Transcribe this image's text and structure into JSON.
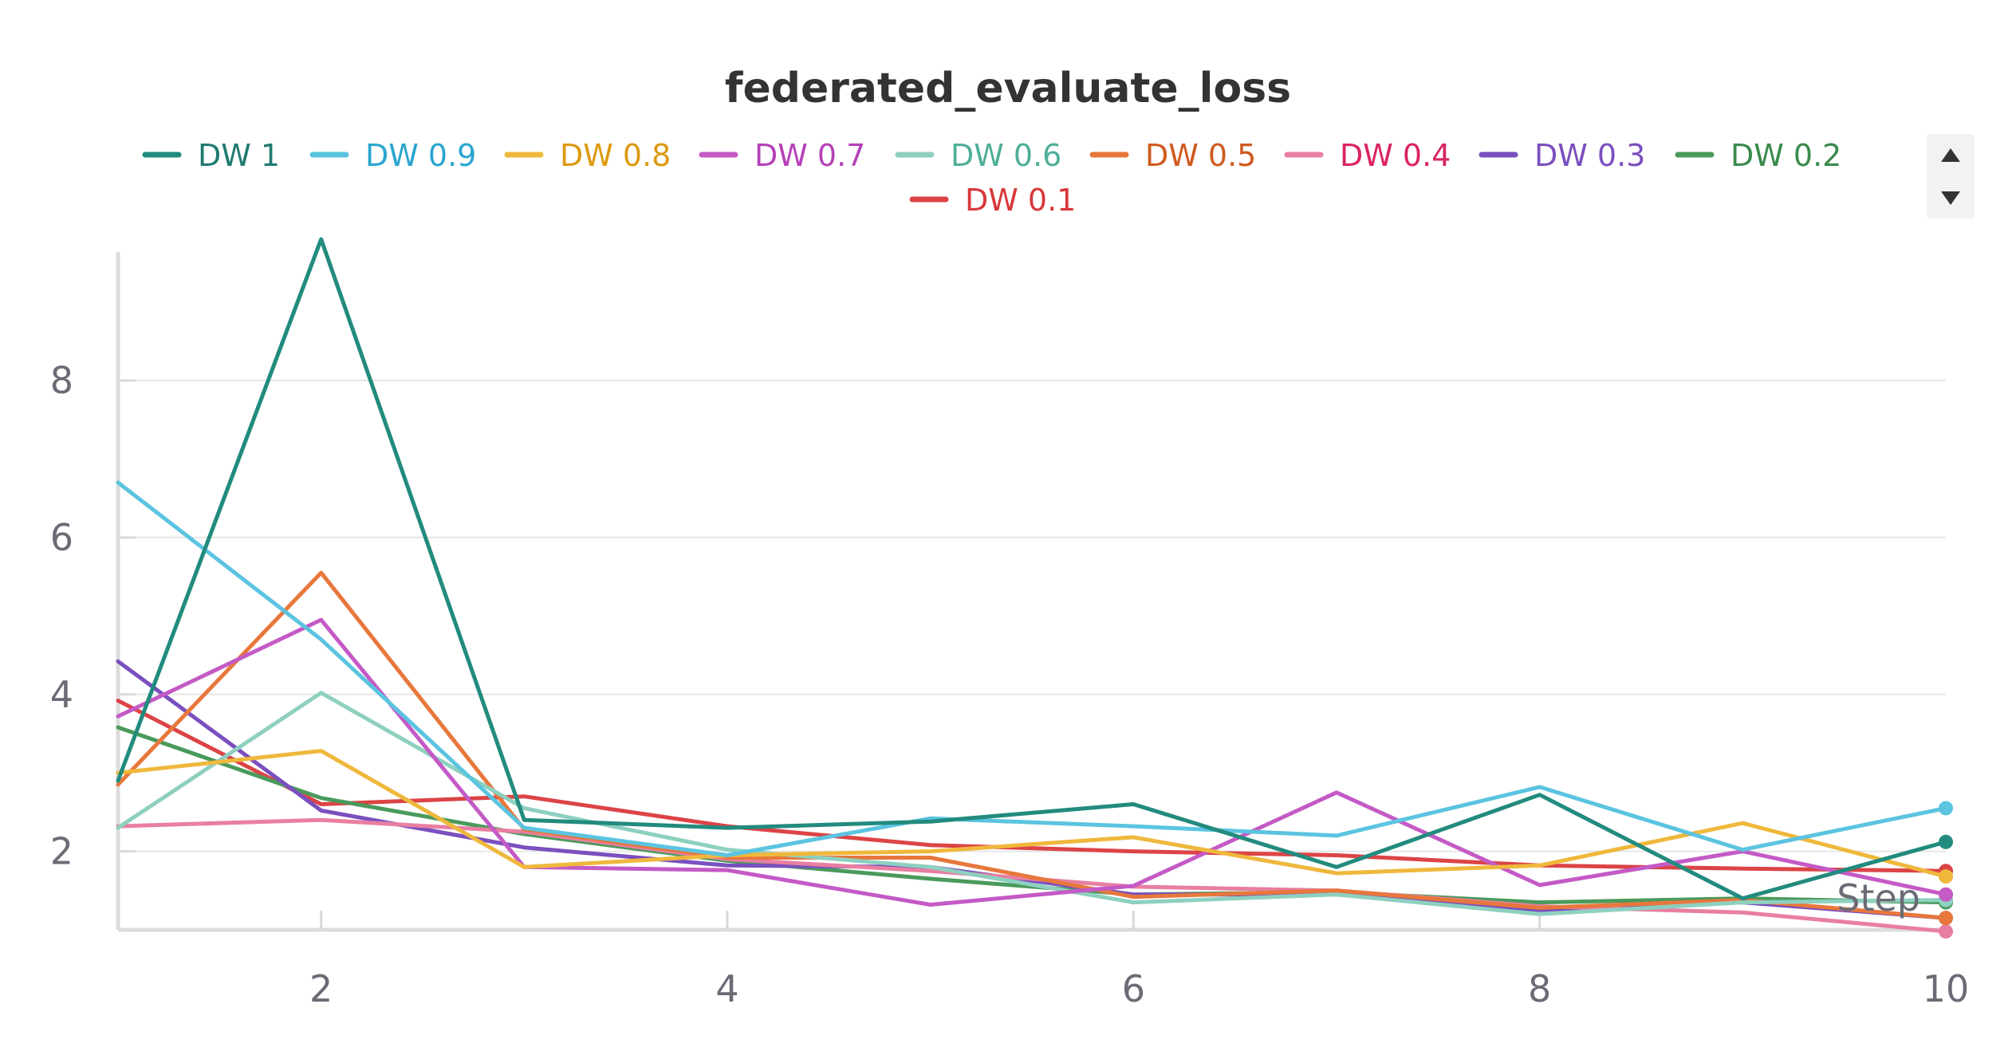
{
  "chart_data": {
    "type": "line",
    "title": "federated_evaluate_loss",
    "xlabel": "Step",
    "ylabel": "",
    "x": [
      1,
      2,
      3,
      4,
      5,
      6,
      7,
      8,
      9,
      10
    ],
    "xlim": [
      1,
      10
    ],
    "ylim": [
      1,
      9.8
    ],
    "xticks": [
      2,
      4,
      6,
      8,
      10
    ],
    "yticks": [
      2,
      4,
      6,
      8
    ],
    "grid": "horizontal",
    "legend_position": "top",
    "series": [
      {
        "name": "DW 1",
        "color": "#228b7e",
        "label_color": "#1f7a6f",
        "values": [
          2.9,
          9.8,
          2.4,
          2.3,
          2.38,
          2.6,
          1.8,
          2.72,
          1.4,
          2.12
        ]
      },
      {
        "name": "DW 0.9",
        "color": "#5bc4e0",
        "label_color": "#2aa5cf",
        "values": [
          6.7,
          4.7,
          2.3,
          1.95,
          2.42,
          2.32,
          2.2,
          2.82,
          2.02,
          2.55
        ]
      },
      {
        "name": "DW 0.8",
        "color": "#efb83c",
        "label_color": "#dd9a10",
        "values": [
          3.0,
          3.28,
          1.8,
          1.95,
          2.0,
          2.18,
          1.72,
          1.82,
          2.36,
          1.68
        ]
      },
      {
        "name": "DW 0.7",
        "color": "#c45ac6",
        "label_color": "#b541b8",
        "values": [
          3.72,
          4.95,
          1.8,
          1.76,
          1.32,
          1.56,
          2.75,
          1.57,
          2.0,
          1.45
        ]
      },
      {
        "name": "DW 0.6",
        "color": "#8ed0c0",
        "label_color": "#4fae98",
        "values": [
          2.3,
          4.02,
          2.55,
          2.02,
          1.8,
          1.35,
          1.45,
          1.2,
          1.35,
          1.38
        ]
      },
      {
        "name": "DW 0.5",
        "color": "#e8773c",
        "label_color": "#cf5a1f",
        "values": [
          2.85,
          5.55,
          2.28,
          1.92,
          1.92,
          1.42,
          1.5,
          1.28,
          1.38,
          1.15
        ]
      },
      {
        "name": "DW 0.4",
        "color": "#e87fa1",
        "label_color": "#d9245f",
        "values": [
          2.32,
          2.4,
          2.25,
          1.9,
          1.75,
          1.55,
          1.5,
          1.3,
          1.22,
          0.98
        ]
      },
      {
        "name": "DW 0.3",
        "color": "#7a4fbe",
        "label_color": "#7a4fbe",
        "values": [
          4.42,
          2.52,
          2.05,
          1.82,
          1.8,
          1.45,
          1.45,
          1.25,
          1.35,
          1.15
        ]
      },
      {
        "name": "DW 0.2",
        "color": "#4a9a5c",
        "label_color": "#3a8a4c",
        "values": [
          3.58,
          2.68,
          2.22,
          1.88,
          1.65,
          1.45,
          1.48,
          1.35,
          1.4,
          1.35
        ]
      },
      {
        "name": "DW 0.1",
        "color": "#dc4446",
        "label_color": "#d8373a",
        "values": [
          3.92,
          2.6,
          2.7,
          2.32,
          2.08,
          2.0,
          1.95,
          1.82,
          1.78,
          1.75
        ]
      }
    ]
  }
}
